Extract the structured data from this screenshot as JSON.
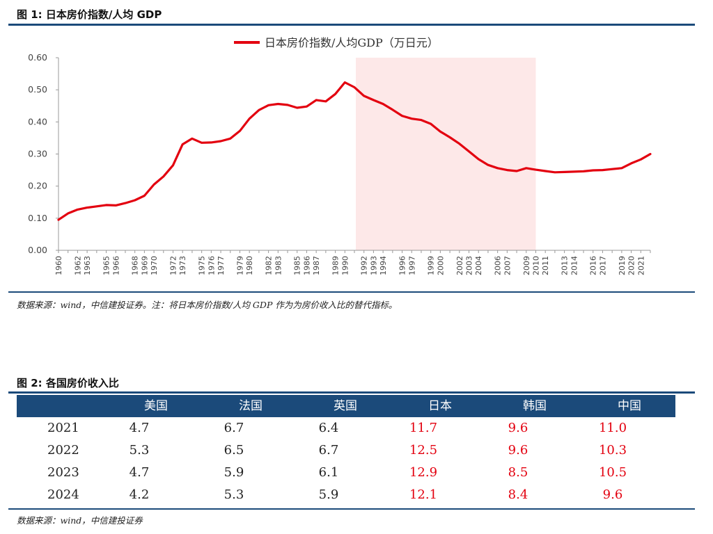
{
  "figure1": {
    "title": "图 1:  日本房价指数/人均 GDP",
    "source": "数据来源：wind，中信建投证券。注：将日本房价指数/人均 GDP 作为为房价收入比的替代指标。"
  },
  "figure2": {
    "title": "图 2:  各国房价收入比",
    "source": "数据来源：wind，中信建投证券",
    "columns": [
      "美国",
      "法国",
      "英国",
      "日本",
      "韩国",
      "中国"
    ],
    "rows": [
      {
        "year": "2021",
        "values": [
          "4.7",
          "6.7",
          "6.4",
          "11.7",
          "9.6",
          "11.0"
        ]
      },
      {
        "year": "2022",
        "values": [
          "5.3",
          "6.5",
          "6.7",
          "12.5",
          "9.6",
          "10.3"
        ]
      },
      {
        "year": "2023",
        "values": [
          "4.7",
          "5.9",
          "6.1",
          "12.9",
          "8.5",
          "10.5"
        ]
      },
      {
        "year": "2024",
        "values": [
          "4.2",
          "5.3",
          "5.9",
          "12.1",
          "8.4",
          "9.6"
        ]
      }
    ],
    "highlight_color": "#e3000f"
  },
  "chart_data": {
    "type": "line",
    "title": "",
    "xlabel": "",
    "ylabel": "",
    "ylim": [
      0,
      0.6
    ],
    "yticks": [
      "0.00",
      "0.10",
      "0.20",
      "0.30",
      "0.40",
      "0.50",
      "0.60"
    ],
    "grid": false,
    "legend_position": "top-center",
    "shaded_region": {
      "from": "1991",
      "to": "2010",
      "color": "#fde8e8"
    },
    "x": [
      "1960",
      "1961",
      "1962",
      "1963",
      "1964",
      "1965",
      "1966",
      "1967",
      "1968",
      "1969",
      "1970",
      "1971",
      "1972",
      "1973",
      "1974",
      "1975",
      "1976",
      "1977",
      "1978",
      "1979",
      "1980",
      "1981",
      "1982",
      "1983",
      "1984",
      "1985",
      "1986",
      "1987",
      "1988",
      "1989",
      "1990",
      "1991",
      "1992",
      "1993",
      "1994",
      "1995",
      "1996",
      "1997",
      "1998",
      "1999",
      "2000",
      "2001",
      "2002",
      "2003",
      "2004",
      "2005",
      "2006",
      "2007",
      "2008",
      "2009",
      "2010",
      "2011",
      "2012",
      "2013",
      "2014",
      "2015",
      "2016",
      "2017",
      "2018",
      "2019",
      "2020",
      "2021",
      "2022"
    ],
    "xtick_labels": [
      "1960",
      "1962",
      "1963",
      "1965",
      "1966",
      "1968",
      "1969",
      "1970",
      "1972",
      "1973",
      "1975",
      "1976",
      "1977",
      "1979",
      "1980",
      "1982",
      "1983",
      "1985",
      "1986",
      "1987",
      "1989",
      "1990",
      "1992",
      "1993",
      "1994",
      "1996",
      "1997",
      "1999",
      "2000",
      "2002",
      "2003",
      "2004",
      "2006",
      "2007",
      "2009",
      "2010",
      "2011",
      "2013",
      "2014",
      "2016",
      "2017",
      "2019",
      "2020",
      "2021"
    ],
    "series": [
      {
        "name": "日本房价指数/人均GDP（万日元）",
        "color": "#e3000f",
        "values": [
          0.095,
          0.115,
          0.127,
          0.133,
          0.137,
          0.141,
          0.14,
          0.147,
          0.156,
          0.17,
          0.205,
          0.23,
          0.265,
          0.33,
          0.348,
          0.335,
          0.336,
          0.34,
          0.348,
          0.372,
          0.41,
          0.437,
          0.452,
          0.456,
          0.453,
          0.444,
          0.448,
          0.468,
          0.464,
          0.487,
          0.523,
          0.508,
          0.481,
          0.468,
          0.456,
          0.438,
          0.419,
          0.41,
          0.406,
          0.394,
          0.37,
          0.352,
          0.332,
          0.308,
          0.284,
          0.266,
          0.256,
          0.25,
          0.247,
          0.256,
          0.251,
          0.247,
          0.243,
          0.244,
          0.245,
          0.246,
          0.249,
          0.25,
          0.253,
          0.256,
          0.271,
          0.283,
          0.3
        ]
      }
    ]
  }
}
